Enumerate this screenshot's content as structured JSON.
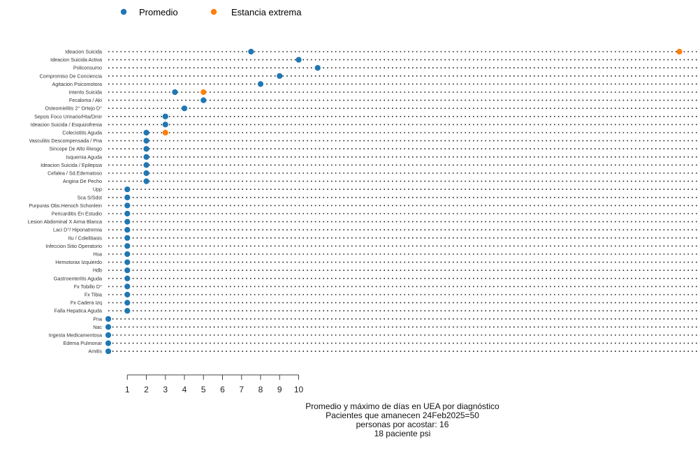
{
  "legend": {
    "items": [
      {
        "label": "Promedio",
        "color": "#1f77b4"
      },
      {
        "label": "Estancia extrema",
        "color": "#ff7f0e"
      }
    ]
  },
  "caption": {
    "lines": [
      "Promedio y máximo de días en UEA por diagnóstico",
      "Pacientes que amanecen  24Feb2025=50",
      "personas por acostar: 16",
      "18 paciente psi"
    ]
  },
  "chart_data": {
    "type": "scatter",
    "orientation": "horizontal",
    "x_ticks": [
      1,
      2,
      3,
      4,
      5,
      6,
      7,
      8,
      9,
      10
    ],
    "xlim": [
      0,
      31
    ],
    "categories": [
      "Ideacion Suicida",
      "Ideacion Suicida Activa",
      "Policonsumo",
      "Compromiso De Conciencia",
      "Agitacion Psicomotora",
      "Intento Suicida",
      "Fecaloma / Aki",
      "Osteomielitis 2° Ortejo D°",
      "Sepsis Foco Urinario/Hta/Dmir",
      "Ideacion Suicida  / Esquizofrenia",
      "Colecistitis Aguda",
      "Vasculitis Descompensada / Pna",
      "Sincope De Alto Riesgo",
      "Isquemia Aguda",
      "Ideacion Suicida / Epilepsia",
      "Cefalea / Sd.Edematoso",
      "Angina De Pecho",
      "Upp",
      "Sca S/Sdst",
      "Purpuras Obs.Henoch Schonlein",
      "Pericarditis En Estudio",
      "Lesion Abdominal X Arma Blanca",
      "Laci D°/ Hiponatremia",
      "Itu / Colelitiasis",
      "Infeccion Sitio Operatorio",
      "Hsa",
      "Hemotorax Izquierdo",
      "Hdb",
      "Gastroenteritis Aguda",
      "Fx Tobillo D°",
      "Fx Tibia",
      "Fx Cadera Izq",
      "Falla Hepatica Aguda",
      "Pna",
      "Nac",
      "Ingesta Medicamentosa",
      "Edema Pulmonar",
      "Amitis"
    ],
    "series": [
      {
        "name": "Promedio",
        "color": "#1f77b4",
        "values": [
          7.5,
          10,
          11,
          9,
          8,
          3.5,
          5,
          4,
          3,
          3,
          2,
          2,
          2,
          2,
          2,
          2,
          2,
          1,
          1,
          1,
          1,
          1,
          1,
          1,
          1,
          1,
          1,
          1,
          1,
          1,
          1,
          1,
          1,
          0,
          0,
          0,
          0,
          0
        ]
      },
      {
        "name": "Estancia extrema",
        "color": "#ff7f0e",
        "values": [
          30,
          10,
          11,
          9,
          8,
          5,
          5,
          4,
          3,
          3,
          3,
          2,
          2,
          2,
          2,
          2,
          2,
          1,
          1,
          1,
          1,
          1,
          1,
          1,
          1,
          1,
          1,
          1,
          1,
          1,
          1,
          1,
          1,
          0,
          0,
          0,
          0,
          0
        ]
      }
    ]
  }
}
